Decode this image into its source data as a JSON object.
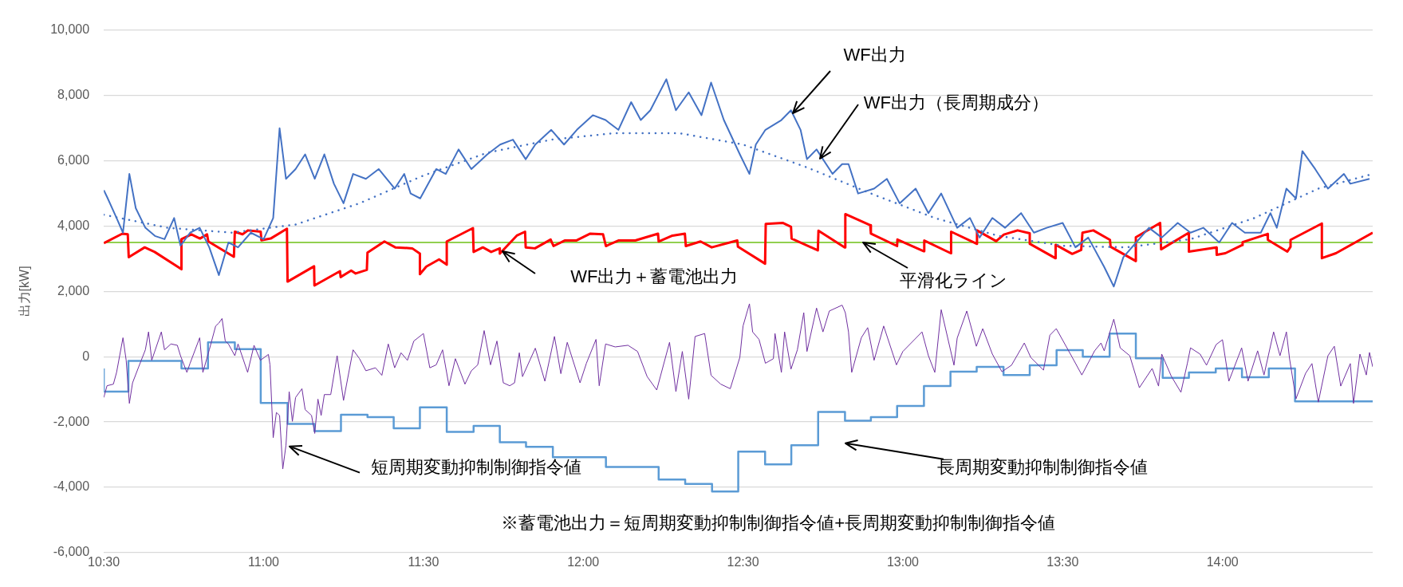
{
  "chart_data": {
    "type": "line",
    "ylabel": "出力[kW]",
    "xlim": [
      10.5,
      14.47
    ],
    "ylim": [
      -6000,
      10000
    ],
    "xticks": [
      {
        "value": 10.5,
        "label": "10:30"
      },
      {
        "value": 11,
        "label": "11:00"
      },
      {
        "value": 11.5,
        "label": "11:30"
      },
      {
        "value": 12,
        "label": "12:00"
      },
      {
        "value": 12.5,
        "label": "12:30"
      },
      {
        "value": 13,
        "label": "13:00"
      },
      {
        "value": 13.5,
        "label": "13:30"
      },
      {
        "value": 14,
        "label": "14:00"
      }
    ],
    "yticks": [
      {
        "value": -6000,
        "label": "-6,000"
      },
      {
        "value": -4000,
        "label": "-4,000"
      },
      {
        "value": -2000,
        "label": "-2,000"
      },
      0,
      {
        "value": 2000,
        "label": "2,000"
      },
      {
        "value": 4000,
        "label": "4,000"
      },
      {
        "value": 6000,
        "label": "6,000"
      },
      {
        "value": 8000,
        "label": "8,000"
      },
      {
        "value": 10000,
        "label": "10,000"
      }
    ],
    "grid": "y",
    "marker": "none",
    "annotations": [
      "※蓄電池出力＝短周期変動抑制制御指令値+長周期変動抑制制御指令値"
    ],
    "series": [
      {
        "name": "WF出力",
        "type": "line",
        "color": "#4472c4",
        "line_style": "solid",
        "x": [
          10.5,
          10.51,
          10.54,
          10.56,
          10.58,
          10.6,
          10.63,
          10.66,
          10.69,
          10.72,
          10.74,
          10.77,
          10.8,
          10.83,
          10.86,
          10.89,
          10.92,
          10.96,
          11.0,
          11.03,
          11.05,
          11.07,
          11.1,
          11.13,
          11.16,
          11.19,
          11.22,
          11.25,
          11.28,
          11.32,
          11.36,
          11.41,
          11.44,
          11.46,
          11.49,
          11.54,
          11.57,
          11.61,
          11.65,
          11.7,
          11.74,
          11.78,
          11.82,
          11.85,
          11.9,
          11.94,
          11.98,
          12.03,
          12.07,
          12.11,
          12.15,
          12.18,
          12.21,
          12.26,
          12.29,
          12.33,
          12.37,
          12.4,
          12.44,
          12.49,
          12.52,
          12.54,
          12.57,
          12.62,
          12.65,
          12.68,
          12.7,
          12.73,
          12.78,
          12.81,
          12.83,
          12.86,
          12.91,
          12.95,
          12.99,
          13.04,
          13.08,
          13.12,
          13.17,
          13.21,
          13.24,
          13.28,
          13.32,
          13.37,
          13.41,
          13.45,
          13.5,
          13.54,
          13.58,
          13.63,
          13.66,
          13.69,
          13.73,
          13.77,
          13.81,
          13.86,
          13.9,
          13.94,
          13.99,
          14.03,
          14.07,
          14.12,
          14.15,
          14.17,
          14.2,
          14.23,
          14.25,
          14.29,
          14.33,
          14.38,
          14.4,
          14.46
        ],
        "values": [
          5100,
          4900,
          4250,
          3800,
          5600,
          4550,
          3950,
          3700,
          3600,
          4250,
          3400,
          3800,
          3950,
          3350,
          2500,
          3500,
          3350,
          3800,
          3600,
          4250,
          7000,
          5450,
          5750,
          6200,
          5450,
          6200,
          5300,
          4700,
          5600,
          5450,
          5750,
          5150,
          5600,
          5000,
          4850,
          5750,
          5600,
          6350,
          5750,
          6200,
          6500,
          6650,
          6050,
          6500,
          6950,
          6500,
          6950,
          7400,
          7250,
          6950,
          7800,
          7250,
          7550,
          8500,
          7550,
          8100,
          7400,
          8400,
          7250,
          6200,
          5600,
          6500,
          6950,
          7250,
          7550,
          6950,
          6050,
          6350,
          5600,
          5900,
          5900,
          5000,
          5150,
          5450,
          4700,
          5150,
          4400,
          5000,
          3950,
          4250,
          3650,
          4250,
          3950,
          4400,
          3800,
          3950,
          4100,
          3350,
          3650,
          2750,
          2150,
          3050,
          3500,
          3950,
          3650,
          4100,
          3800,
          3950,
          3500,
          4100,
          3800,
          3800,
          4400,
          3950,
          5150,
          4850,
          6300,
          5750,
          5150,
          5600,
          5300,
          5450
        ]
      },
      {
        "name": "WF出力（長周期成分）",
        "type": "line",
        "color": "#4472c4",
        "line_style": "dotted",
        "x": [
          10.5,
          10.7,
          10.9,
          11.1,
          11.3,
          11.5,
          11.7,
          11.9,
          12.1,
          12.3,
          12.5,
          12.7,
          12.9,
          13.1,
          13.3,
          13.5,
          13.7,
          13.9,
          14.1,
          14.3,
          14.47
        ],
        "values": [
          4350,
          3950,
          3800,
          4050,
          4700,
          5550,
          6250,
          6650,
          6850,
          6850,
          6500,
          5800,
          5000,
          4250,
          3700,
          3400,
          3350,
          3600,
          4250,
          5150,
          5600
        ]
      },
      {
        "name": "WF出力＋蓄電池出力",
        "type": "line",
        "color": "#ff0000",
        "line_style": "solid",
        "x": [
          10.5,
          10.558,
          10.575,
          10.578,
          10.628,
          10.659,
          10.743,
          10.743,
          10.774,
          10.801,
          10.823,
          10.827,
          10.907,
          10.91,
          10.934,
          10.951,
          10.991,
          10.993,
          11.022,
          11.073,
          11.075,
          11.158,
          11.159,
          11.239,
          11.241,
          11.274,
          11.288,
          11.323,
          11.325,
          11.378,
          11.412,
          11.465,
          11.489,
          11.489,
          11.509,
          11.549,
          11.573,
          11.573,
          11.655,
          11.657,
          11.686,
          11.712,
          11.739,
          11.739,
          11.792,
          11.818,
          11.82,
          11.849,
          11.898,
          11.907,
          11.942,
          11.978,
          12.022,
          12.062,
          12.071,
          12.11,
          12.163,
          12.234,
          12.236,
          12.279,
          12.318,
          12.321,
          12.367,
          12.402,
          12.482,
          12.484,
          12.569,
          12.571,
          12.624,
          12.65,
          12.652,
          12.734,
          12.736,
          12.818,
          12.82,
          12.898,
          12.9,
          12.982,
          12.983,
          13.066,
          13.067,
          13.15,
          13.151,
          13.231,
          13.232,
          13.292,
          13.316,
          13.359,
          13.397,
          13.397,
          13.477,
          13.478,
          13.53,
          13.558,
          13.562,
          13.596,
          13.648,
          13.65,
          13.729,
          13.729,
          13.805,
          13.808,
          13.895,
          13.895,
          13.981,
          13.982,
          14.009,
          14.061,
          14.063,
          14.141,
          14.142,
          14.203,
          14.213,
          14.213,
          14.311,
          14.311,
          14.355,
          14.47
        ],
        "values": [
          3480,
          3770,
          3750,
          3050,
          3350,
          3210,
          2680,
          3600,
          3750,
          3620,
          3750,
          3530,
          3060,
          3830,
          3750,
          3870,
          3830,
          3570,
          3620,
          3920,
          2300,
          2770,
          2180,
          2620,
          2440,
          2640,
          2550,
          2660,
          3190,
          3530,
          3350,
          3320,
          3160,
          2530,
          2760,
          2980,
          2820,
          3530,
          3940,
          3210,
          3350,
          3210,
          3320,
          3160,
          3710,
          3830,
          3350,
          3320,
          3590,
          3390,
          3560,
          3560,
          3770,
          3750,
          3390,
          3560,
          3560,
          3770,
          3530,
          3710,
          3770,
          3390,
          3530,
          3350,
          3560,
          3370,
          2850,
          4070,
          4100,
          3980,
          3620,
          3260,
          3860,
          3350,
          4370,
          4030,
          3770,
          3390,
          3590,
          3230,
          3560,
          3170,
          3830,
          3460,
          3870,
          3540,
          3740,
          3870,
          3780,
          3460,
          3020,
          3430,
          3150,
          3270,
          3800,
          3870,
          3580,
          3370,
          2930,
          3660,
          4100,
          3290,
          3800,
          3220,
          3350,
          3120,
          3170,
          3420,
          3510,
          3760,
          3580,
          3220,
          3370,
          3580,
          4080,
          3020,
          3170,
          3800
        ]
      },
      {
        "name": "平滑化ライン",
        "type": "line",
        "color": "#92d050",
        "line_style": "solid",
        "x": [
          10.5,
          14.47
        ],
        "values": [
          3500,
          3500
        ]
      },
      {
        "name": "短周期変動抑制制御指令値",
        "type": "line",
        "color": "#7030a0",
        "line_style": "solid",
        "x": [
          10.5,
          10.51,
          10.53,
          10.54,
          10.56,
          10.57,
          10.58,
          10.59,
          10.61,
          10.63,
          10.64,
          10.65,
          10.68,
          10.69,
          10.71,
          10.73,
          10.74,
          10.76,
          10.77,
          10.8,
          10.81,
          10.83,
          10.85,
          10.86,
          10.87,
          10.88,
          10.89,
          10.91,
          10.92,
          10.95,
          10.97,
          10.99,
          11.015,
          11.02,
          11.03,
          11.04,
          11.05,
          11.06,
          11.07,
          11.08,
          11.09,
          11.1,
          11.12,
          11.13,
          11.15,
          11.16,
          11.17,
          11.18,
          11.19,
          11.21,
          11.23,
          11.25,
          11.28,
          11.3,
          11.32,
          11.35,
          11.37,
          11.39,
          11.41,
          11.43,
          11.45,
          11.47,
          11.5,
          11.52,
          11.54,
          11.56,
          11.58,
          11.6,
          11.63,
          11.65,
          11.67,
          11.69,
          11.71,
          11.73,
          11.75,
          11.77,
          11.785,
          11.8,
          11.81,
          11.85,
          11.88,
          11.91,
          11.93,
          11.95,
          11.99,
          12.01,
          12.04,
          12.05,
          12.07,
          12.1,
          12.14,
          12.17,
          12.2,
          12.23,
          12.27,
          12.29,
          12.31,
          12.33,
          12.35,
          12.38,
          12.4,
          12.43,
          12.46,
          12.49,
          12.5,
          12.52,
          12.53,
          12.55,
          12.57,
          12.595,
          12.6,
          12.62,
          12.63,
          12.65,
          12.67,
          12.69,
          12.7,
          12.73,
          12.75,
          12.77,
          12.81,
          12.82,
          12.83,
          12.84,
          12.87,
          12.89,
          12.91,
          12.94,
          12.98,
          13.0,
          13.06,
          13.08,
          13.1,
          13.12,
          13.16,
          13.17,
          13.2,
          13.23,
          13.25,
          13.28,
          13.31,
          13.34,
          13.38,
          13.4,
          13.44,
          13.46,
          13.48,
          13.53,
          13.56,
          13.6,
          13.62,
          13.63,
          13.66,
          13.68,
          13.71,
          13.74,
          13.78,
          13.8,
          13.81,
          13.84,
          13.87,
          13.89,
          13.9,
          13.93,
          13.95,
          13.98,
          14.0,
          14.02,
          14.06,
          14.08,
          14.11,
          14.13,
          14.16,
          14.18,
          14.2,
          14.21,
          14.23,
          14.26,
          14.28,
          14.3,
          14.33,
          14.35,
          14.37,
          14.4,
          14.41,
          14.43,
          14.45,
          14.46,
          14.47
        ],
        "values": [
          -1250,
          -890,
          -840,
          -480,
          580,
          -110,
          -1430,
          -800,
          -290,
          210,
          760,
          -110,
          760,
          210,
          390,
          350,
          30,
          -480,
          -200,
          580,
          -480,
          210,
          940,
          1030,
          1170,
          480,
          390,
          30,
          390,
          -480,
          350,
          -110,
          70,
          -250,
          -2480,
          -1710,
          -1800,
          -3440,
          -2710,
          -1070,
          -1980,
          -1250,
          -980,
          -1620,
          -1800,
          -2350,
          -1300,
          -1800,
          -1160,
          -1160,
          30,
          -1340,
          210,
          -60,
          -430,
          -340,
          -570,
          390,
          -340,
          120,
          -110,
          480,
          710,
          -340,
          -250,
          210,
          -890,
          -60,
          -840,
          -430,
          -250,
          800,
          -250,
          480,
          -800,
          -890,
          -800,
          120,
          -610,
          260,
          -750,
          620,
          -520,
          440,
          -800,
          -200,
          530,
          -890,
          390,
          300,
          350,
          160,
          -610,
          -1020,
          440,
          -1070,
          160,
          -1300,
          620,
          710,
          -570,
          -840,
          -980,
          -20,
          940,
          1620,
          760,
          530,
          -200,
          -60,
          710,
          -480,
          760,
          -380,
          210,
          1350,
          160,
          1490,
          760,
          1400,
          1580,
          1350,
          760,
          -480,
          580,
          890,
          -110,
          940,
          -250,
          160,
          760,
          30,
          -480,
          1440,
          -260,
          570,
          1400,
          320,
          860,
          80,
          -460,
          -260,
          420,
          -20,
          -410,
          660,
          860,
          -20,
          -560,
          180,
          420,
          180,
          1150,
          270,
          30,
          -950,
          -360,
          -900,
          80,
          -600,
          -1090,
          -210,
          270,
          80,
          -260,
          370,
          520,
          -750,
          270,
          -750,
          180,
          -560,
          760,
          30,
          760,
          -70,
          -1290,
          -510,
          -210,
          -1390,
          30,
          320,
          -900,
          -210,
          -1430,
          80,
          -560,
          130,
          -310
        ]
      },
      {
        "name": "長周期変動抑制制御指令値",
        "type": "step",
        "color": "#5b9bd5",
        "line_style": "solid",
        "x": [
          10.5,
          10.577,
          10.743,
          10.826,
          10.91,
          10.991,
          11.075,
          11.159,
          11.242,
          11.325,
          11.407,
          11.489,
          11.573,
          11.657,
          11.739,
          11.821,
          11.905,
          12.071,
          12.236,
          12.319,
          12.403,
          12.485,
          12.569,
          12.651,
          12.735,
          12.819,
          12.9,
          12.982,
          13.066,
          13.149,
          13.231,
          13.315,
          13.397,
          13.481,
          13.563,
          13.647,
          13.729,
          13.813,
          13.895,
          13.979,
          14.061,
          14.145,
          14.227,
          14.311,
          14.47
        ],
        "values": [
          -360,
          -1070,
          -130,
          -360,
          440,
          230,
          -1420,
          -2060,
          -2280,
          -1780,
          -1850,
          -2190,
          -1550,
          -2300,
          -2120,
          -2620,
          -2760,
          -3080,
          -3380,
          -3760,
          -3900,
          -4130,
          -2910,
          -3300,
          -2710,
          -1690,
          -1960,
          -1850,
          -1510,
          -900,
          -460,
          -310,
          -560,
          -260,
          200,
          0,
          710,
          -50,
          -650,
          -480,
          -360,
          -630,
          -360,
          -1370,
          -1370
        ]
      }
    ]
  }
}
